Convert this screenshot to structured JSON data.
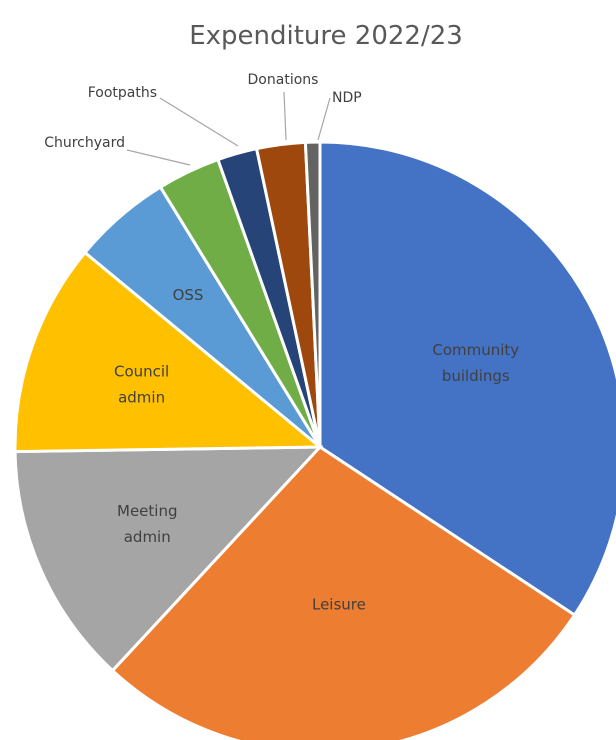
{
  "chart_data": {
    "type": "pie",
    "title": "Expenditure 2022/23",
    "slices": [
      {
        "label": "Community buildings",
        "value": 36.0,
        "color": "#4472C4"
      },
      {
        "label": "Leisure",
        "value": 29.0,
        "color": "#ED7D31"
      },
      {
        "label": "Meeting admin",
        "value": 13.5,
        "color": "#A5A5A5"
      },
      {
        "label": "Council admin",
        "value": 11.8,
        "color": "#FFC000"
      },
      {
        "label": "OSS",
        "value": 5.5,
        "color": "#5B9BD5"
      },
      {
        "label": "Churchyard",
        "value": 3.5,
        "color": "#70AD47"
      },
      {
        "label": "Footpaths",
        "value": 2.2,
        "color": "#264478"
      },
      {
        "label": "Donations",
        "value": 2.7,
        "color": "#9E480E"
      },
      {
        "label": "NDP",
        "value": 0.8,
        "color": "#636363"
      }
    ],
    "legend": "none"
  }
}
